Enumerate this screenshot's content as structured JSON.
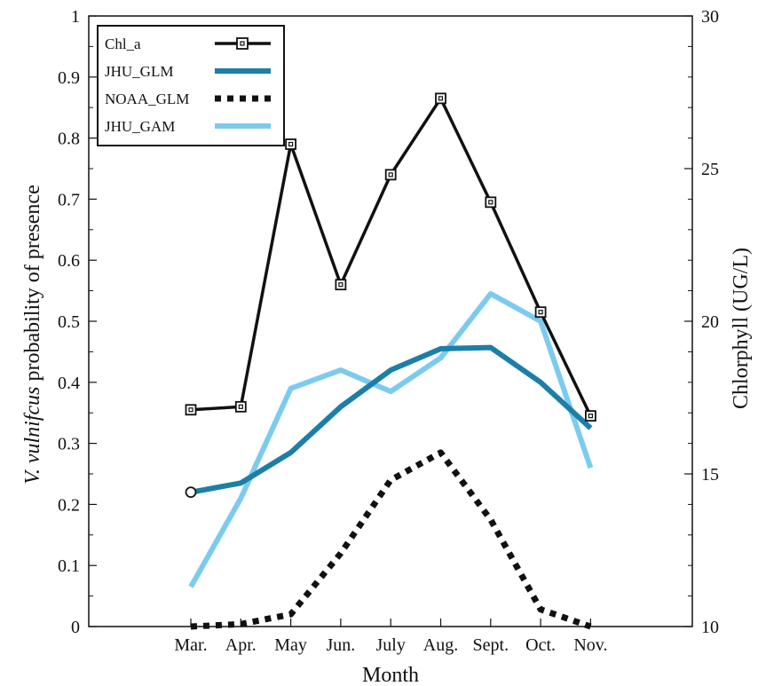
{
  "chart_data": {
    "type": "line",
    "categories": [
      "Mar.",
      "Apr.",
      "May",
      "Jun.",
      "July",
      "Aug.",
      "Sept.",
      "Oct.",
      "Nov."
    ],
    "xlabel": "Month",
    "ylabel_prefix": "V. vulnifcus",
    "ylabel_rest": " probability of presence",
    "y2label": "Chlorphyll (UG/L)",
    "ylim": [
      0,
      1
    ],
    "yticks": [
      "0",
      "0.1",
      "0.2",
      "0.3",
      "0.4",
      "0.5",
      "0.6",
      "0.7",
      "0.8",
      "0.9",
      "1"
    ],
    "y2lim": [
      10,
      30
    ],
    "y2ticks": [
      "10",
      "15",
      "20",
      "25",
      "30"
    ],
    "grid": false,
    "legend_position": "top-left",
    "series": [
      {
        "name": "Chl_a",
        "axis": "right",
        "style": "solid-square-markers",
        "color": "#111111",
        "values": [
          17.1,
          17.2,
          25.8,
          21.2,
          24.8,
          27.3,
          23.9,
          20.3,
          16.9
        ]
      },
      {
        "name": "JHU_GLM",
        "axis": "left",
        "style": "solid-thick",
        "color": "#1b7fa8",
        "values": [
          0.22,
          0.235,
          0.285,
          0.36,
          0.42,
          0.455,
          0.457,
          0.4,
          0.325
        ]
      },
      {
        "name": "NOAA_GLM",
        "axis": "left",
        "style": "dotted",
        "color": "#111111",
        "values": [
          0.0,
          0.004,
          0.02,
          0.12,
          0.24,
          0.285,
          0.175,
          0.028,
          0.0
        ]
      },
      {
        "name": "JHU_GAM",
        "axis": "left",
        "style": "solid-thick",
        "color": "#7ccbef",
        "values": [
          0.065,
          0.21,
          0.39,
          0.42,
          0.385,
          0.44,
          0.545,
          0.5,
          0.26
        ]
      }
    ],
    "annotations": [
      {
        "type": "open-circle-marker",
        "category": "Mar.",
        "y": 0.22
      }
    ]
  }
}
